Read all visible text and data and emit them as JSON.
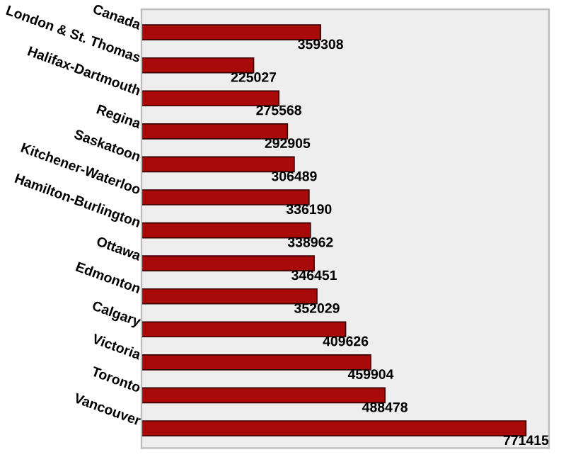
{
  "chart_data": {
    "type": "bar",
    "orientation": "horizontal",
    "data_labels": true,
    "grid": false,
    "legend": false,
    "categories": [
      "Canada",
      "London & St. Thomas",
      "Halifax-Dartmouth",
      "Regina",
      "Saskatoon",
      "Kitchener-Waterloo",
      "Hamilton-Burlington",
      "Ottawa",
      "Edmonton",
      "Calgary",
      "Victoria",
      "Toronto",
      "Vancouver"
    ],
    "values": [
      359308,
      225027,
      275568,
      292905,
      306489,
      336190,
      338962,
      346451,
      352029,
      409626,
      459904,
      488478,
      771415
    ],
    "color": "#a80a0a"
  }
}
